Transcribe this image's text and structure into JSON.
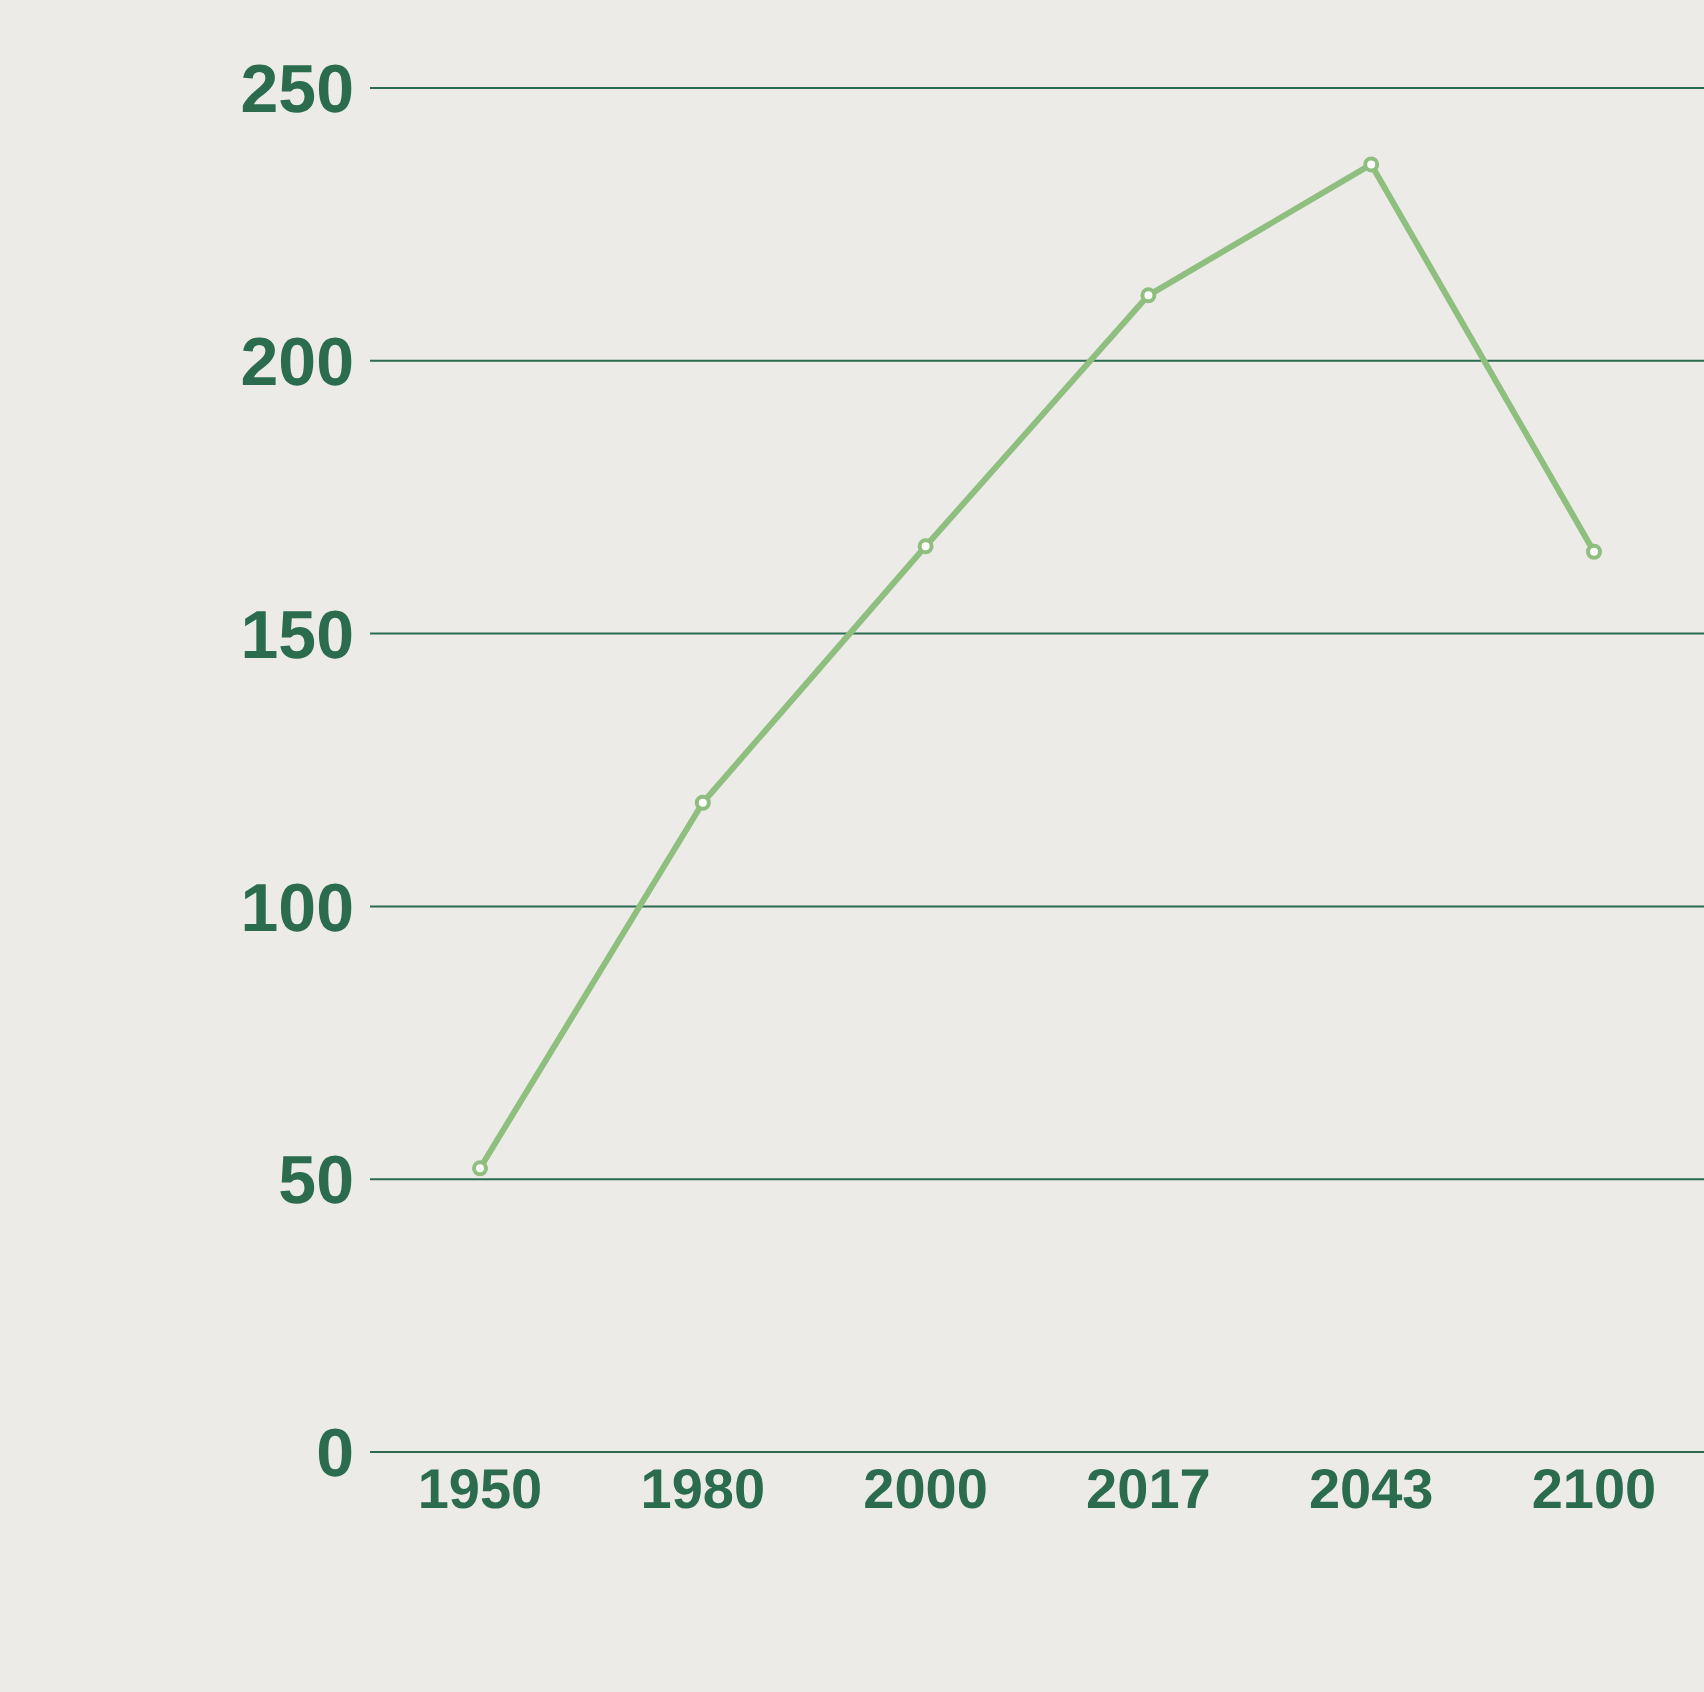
{
  "chart_data": {
    "type": "line",
    "categories": [
      "1950",
      "1980",
      "2000",
      "2017",
      "2043",
      "2100"
    ],
    "series": [
      {
        "color": "#8fbf7f",
        "values": [
          52,
          119,
          166,
          212,
          236,
          165
        ]
      }
    ],
    "ylim": [
      0,
      250
    ],
    "yticks": [
      0,
      50,
      100,
      150,
      200,
      250
    ],
    "grid": "y",
    "marker": "circle",
    "line_style": "solid"
  }
}
